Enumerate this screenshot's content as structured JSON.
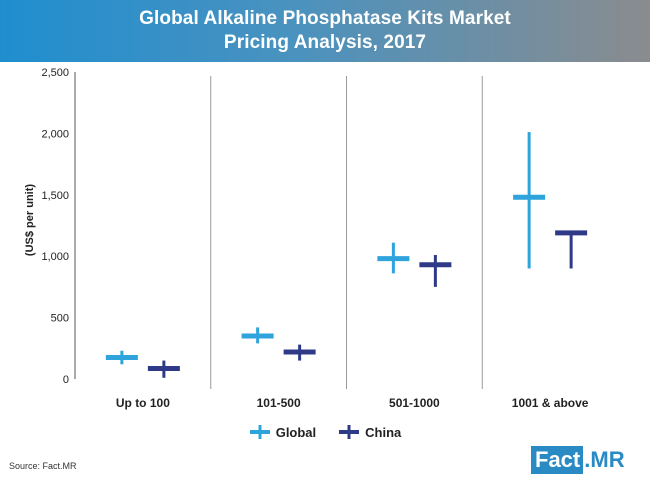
{
  "header": {
    "title_line1": "Global Alkaline Phosphatase Kits Market",
    "title_line2": "Pricing Analysis, 2017"
  },
  "chart_data": {
    "type": "candlestick-range",
    "title": "Global Alkaline Phosphatase Kits Market Pricing Analysis, 2017",
    "ylabel": "(US$ per unit)",
    "ylim": [
      0,
      2500
    ],
    "yticks": [
      0,
      500,
      1000,
      1500,
      2000,
      2500
    ],
    "ytick_labels": [
      "0",
      "500",
      "1,000",
      "1,500",
      "2,000",
      "2,500"
    ],
    "categories": [
      "Up to 100",
      "101-500",
      "501-1000",
      "1001 & above"
    ],
    "series": [
      {
        "name": "Global",
        "color": "#2ea3dc",
        "low": [
          120,
          290,
          860,
          900
        ],
        "high": [
          230,
          420,
          1110,
          2010
        ],
        "mid": [
          175,
          350,
          980,
          1480
        ]
      },
      {
        "name": "China",
        "color": "#2e3a87",
        "low": [
          10,
          150,
          750,
          900
        ],
        "high": [
          150,
          280,
          1010,
          1190
        ],
        "mid": [
          85,
          220,
          930,
          1190
        ]
      }
    ],
    "grid": false,
    "legend_position": "bottom"
  },
  "legend": {
    "global_label": "Global",
    "china_label": "China"
  },
  "source": "Source: Fact.MR",
  "logo": {
    "fact": "Fact",
    "mr": ".MR"
  }
}
